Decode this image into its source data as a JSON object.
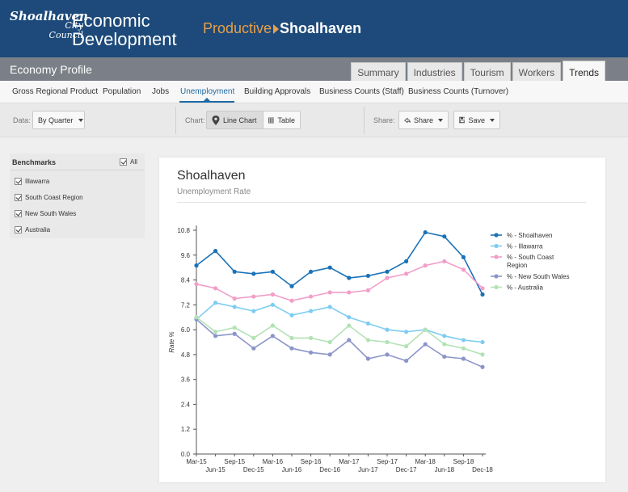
{
  "header": {
    "logo": {
      "line1": "Shoalhaven",
      "line2": "City",
      "line3": "Council"
    },
    "title_line1": "Economic",
    "title_line2": "Development",
    "tagline_prefix": "Productive",
    "tagline_strong": "Shoalhaven"
  },
  "profile": {
    "title": "Economy Profile",
    "tabs": [
      {
        "label": "Summary"
      },
      {
        "label": "Industries"
      },
      {
        "label": "Tourism"
      },
      {
        "label": "Workers"
      },
      {
        "label": "Trends"
      }
    ],
    "active_tab": "Trends"
  },
  "subnav": {
    "items": [
      {
        "label": "Gross Regional Product"
      },
      {
        "label": "Population"
      },
      {
        "label": "Jobs"
      },
      {
        "label": "Unemployment"
      },
      {
        "label": "Building Approvals"
      },
      {
        "label": "Business Counts (Staff)"
      },
      {
        "label": "Business Counts (Turnover)"
      }
    ],
    "active_item": "Unemployment"
  },
  "toolbar": {
    "data_label": "Data:",
    "data_select": "By Quarter",
    "chart_label": "Chart:",
    "line_chart": "Line Chart",
    "table": "Table",
    "share_label": "Share:",
    "share_button": "Share",
    "save_button": "Save"
  },
  "sidebar": {
    "header": "Benchmarks",
    "all_label": "All",
    "items": [
      {
        "label": "Illawarra",
        "checked": true
      },
      {
        "label": "South Coast Region",
        "checked": true
      },
      {
        "label": "New South Wales",
        "checked": true
      },
      {
        "label": "Australia",
        "checked": true
      }
    ]
  },
  "icons": {
    "chart": "map-pin-icon",
    "table": "table-grid-icon",
    "share": "share-icon",
    "save": "save-disk-icon",
    "dropdown": "chevron-down-icon"
  },
  "chart_data": {
    "type": "line",
    "title": "Shoalhaven",
    "subtitle": "Unemployment Rate",
    "ylabel": "Rate %",
    "xlabel": "",
    "ylim": [
      0,
      10.8
    ],
    "yticks": [
      "0.0",
      "1.2",
      "2.4",
      "3.6",
      "4.8",
      "6.0",
      "7.2",
      "8.4",
      "9.6",
      "10.8"
    ],
    "categories": [
      "Mar-15",
      "Jun-15",
      "Sep-15",
      "Dec-15",
      "Mar-16",
      "Jun-16",
      "Sep-16",
      "Dec-16",
      "Mar-17",
      "Jun-17",
      "Sep-17",
      "Dec-17",
      "Mar-18",
      "Jun-18",
      "Sep-18",
      "Dec-18"
    ],
    "grid": false,
    "legend_position": "right",
    "series": [
      {
        "name": "% - Shoalhaven",
        "color": "#1a72b8",
        "values": [
          9.1,
          9.8,
          8.8,
          8.7,
          8.8,
          8.1,
          8.8,
          9.0,
          8.5,
          8.6,
          8.8,
          9.3,
          10.7,
          10.5,
          9.5,
          7.7
        ]
      },
      {
        "name": "% - Illawarra",
        "color": "#7ecdf2",
        "values": [
          6.5,
          7.3,
          7.1,
          6.9,
          7.2,
          6.7,
          6.9,
          7.1,
          6.6,
          6.3,
          6.0,
          5.9,
          6.0,
          5.7,
          5.5,
          5.4
        ]
      },
      {
        "name": "% - South Coast Region",
        "color": "#f29ec8",
        "values": [
          8.2,
          8.0,
          7.5,
          7.6,
          7.7,
          7.4,
          7.6,
          7.8,
          7.8,
          7.9,
          8.5,
          8.7,
          9.1,
          9.3,
          8.9,
          8.0
        ]
      },
      {
        "name": "% - New South Wales",
        "color": "#8c95c9",
        "values": [
          6.5,
          5.7,
          5.8,
          5.1,
          5.7,
          5.1,
          4.9,
          4.8,
          5.5,
          4.6,
          4.8,
          4.5,
          5.3,
          4.7,
          4.6,
          4.2
        ]
      },
      {
        "name": "% - Australia",
        "color": "#b3e2b5",
        "values": [
          6.6,
          5.9,
          6.1,
          5.6,
          6.2,
          5.6,
          5.6,
          5.4,
          6.2,
          5.5,
          5.4,
          5.2,
          6.0,
          5.3,
          5.1,
          4.8
        ]
      }
    ]
  }
}
